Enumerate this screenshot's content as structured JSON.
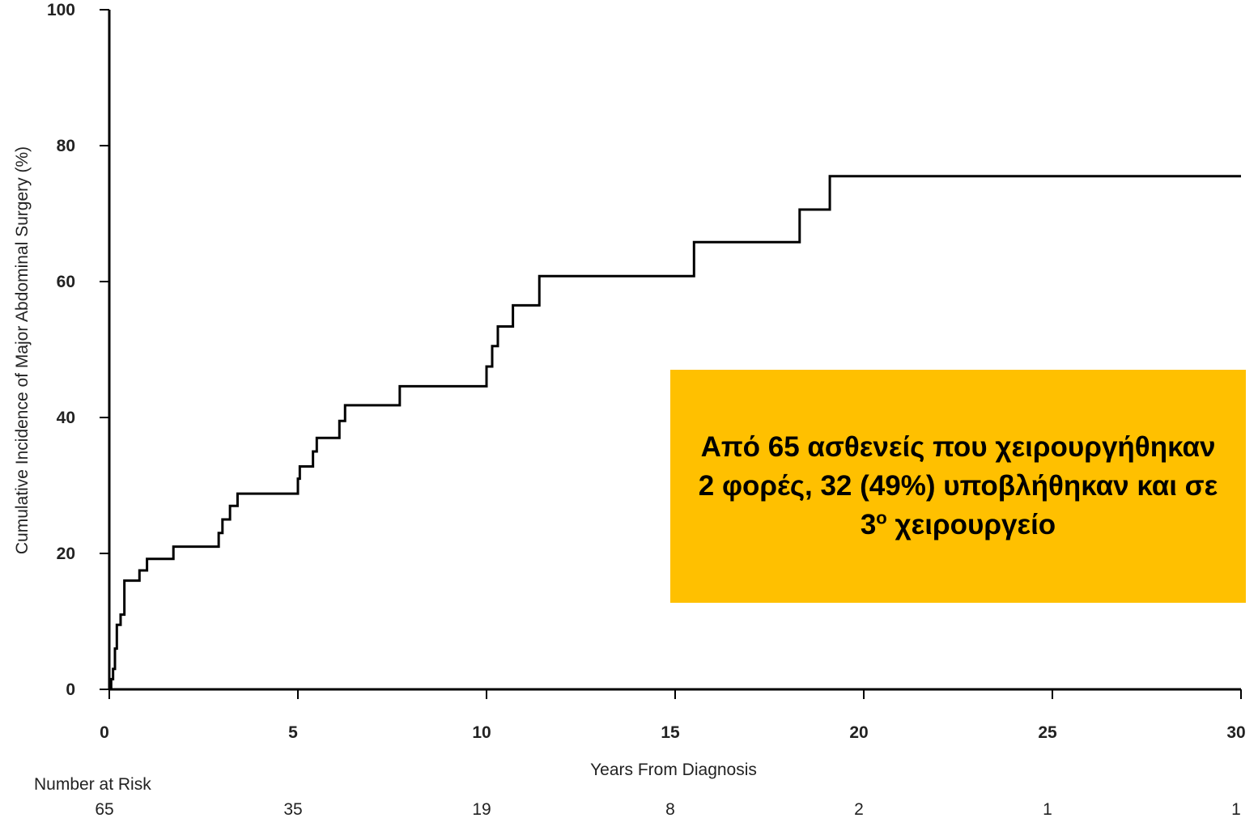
{
  "chart_data": {
    "type": "line",
    "step": true,
    "xlabel": "Years From Diagnosis",
    "ylabel": "Cumulative Incidence of Major Abdominal Surgery (%)",
    "xlim": [
      0,
      30
    ],
    "ylim": [
      0,
      100
    ],
    "xticks": [
      0,
      5,
      10,
      15,
      20,
      25,
      30
    ],
    "yticks": [
      0,
      20,
      40,
      60,
      80,
      100
    ],
    "grid": false,
    "series": [
      {
        "points": [
          [
            0,
            0
          ],
          [
            0.05,
            1.5
          ],
          [
            0.1,
            3
          ],
          [
            0.15,
            6
          ],
          [
            0.2,
            9.5
          ],
          [
            0.3,
            11
          ],
          [
            0.4,
            16
          ],
          [
            0.8,
            17.5
          ],
          [
            1.0,
            19.2
          ],
          [
            1.7,
            21
          ],
          [
            2.9,
            23
          ],
          [
            3.0,
            25
          ],
          [
            3.2,
            27
          ],
          [
            3.4,
            28.8
          ],
          [
            5.0,
            31
          ],
          [
            5.05,
            32.8
          ],
          [
            5.4,
            35
          ],
          [
            5.5,
            37
          ],
          [
            6.1,
            39.5
          ],
          [
            6.25,
            41.8
          ],
          [
            7.7,
            44.6
          ],
          [
            10.0,
            47.5
          ],
          [
            10.15,
            50.5
          ],
          [
            10.3,
            53.4
          ],
          [
            10.7,
            56.5
          ],
          [
            11.4,
            60.8
          ],
          [
            15.5,
            65.8
          ],
          [
            18.3,
            70.6
          ],
          [
            19.1,
            75.5
          ],
          [
            30,
            75.5
          ]
        ]
      }
    ],
    "risk_table": {
      "title": "Number at Risk",
      "x": [
        0,
        5,
        10,
        15,
        20,
        25,
        30
      ],
      "counts": [
        "65",
        "35",
        "19",
        "8",
        "2",
        "1",
        "1"
      ]
    }
  },
  "callout": {
    "text": "Από 65 ασθενείς που χειρουργήθηκαν 2 φορές, 32 (49%) υποβλήθηκαν και σε 3",
    "superscript": "ο",
    "text_after": " χειρουργείο",
    "background": "#ffc000"
  }
}
